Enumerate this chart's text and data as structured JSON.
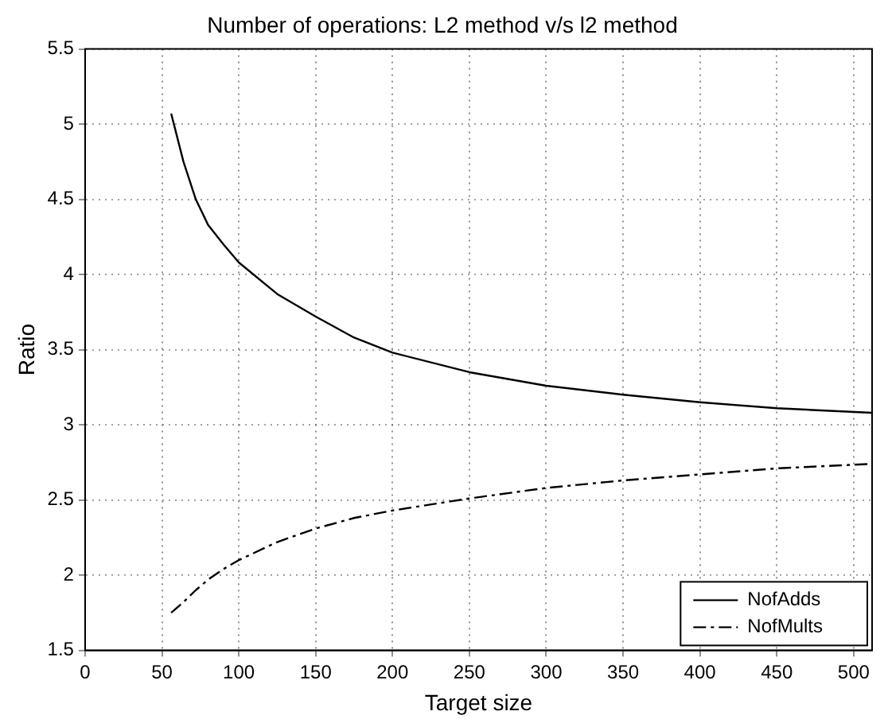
{
  "chart_data": {
    "type": "line",
    "title": "Number of operations: L2 method v/s l2 method",
    "xlabel": "Target size",
    "ylabel": "Ratio",
    "x": [
      56,
      64,
      72,
      80,
      90,
      100,
      125,
      150,
      175,
      200,
      250,
      300,
      350,
      400,
      450,
      512
    ],
    "series": [
      {
        "name": "NofAdds",
        "color": "#000000",
        "line_style": "solid",
        "values": [
          5.07,
          4.75,
          4.5,
          4.33,
          4.2,
          4.08,
          3.87,
          3.72,
          3.58,
          3.48,
          3.35,
          3.26,
          3.2,
          3.15,
          3.11,
          3.08
        ]
      },
      {
        "name": "NofMults",
        "color": "#000000",
        "line_style": "dashed",
        "values": [
          1.75,
          1.82,
          1.9,
          1.97,
          2.04,
          2.1,
          2.22,
          2.31,
          2.38,
          2.43,
          2.51,
          2.58,
          2.63,
          2.67,
          2.71,
          2.74
        ]
      }
    ],
    "xlim": [
      0,
      512
    ],
    "xticks": [
      0,
      50,
      100,
      150,
      200,
      250,
      300,
      350,
      400,
      450,
      500
    ],
    "ylim": [
      1.5,
      5.5
    ],
    "yticks": [
      1.5,
      2,
      2.5,
      3,
      3.5,
      4,
      4.5,
      5,
      5.5
    ],
    "grid": true,
    "legend": "bottom right",
    "marker": "none"
  }
}
